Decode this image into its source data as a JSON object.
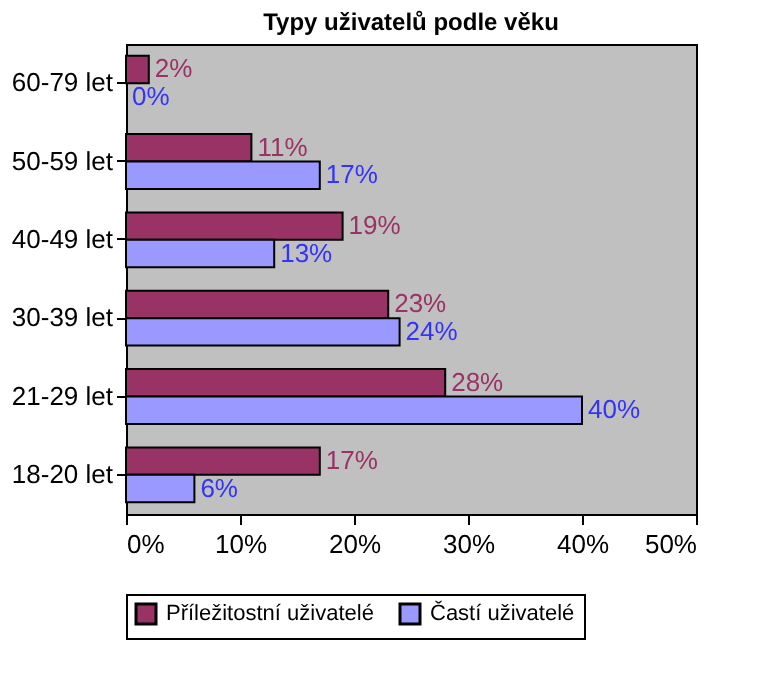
{
  "chart_data": {
    "type": "bar",
    "orientation": "horizontal",
    "title": "Typy uživatelů podle věku",
    "categories": [
      "60-79 let",
      "50-59 let",
      "40-49 let",
      "30-39 let",
      "21-29 let",
      "18-20 let"
    ],
    "series": [
      {
        "name": "Příležitostní uživatelé",
        "color": "#993366",
        "values": [
          2,
          11,
          19,
          23,
          28,
          17
        ],
        "value_labels": [
          "2%",
          "11%",
          "19%",
          "23%",
          "28%",
          "17%"
        ]
      },
      {
        "name": "Častí uživatelé",
        "color": "#9999ff",
        "values": [
          0,
          17,
          13,
          24,
          40,
          6
        ],
        "value_labels": [
          "0%",
          "17%",
          "13%",
          "24%",
          "40%",
          "6%"
        ]
      }
    ],
    "xlim": [
      0,
      50
    ],
    "xticks": [
      {
        "value": 0,
        "label": "0%"
      },
      {
        "value": 10,
        "label": "10%"
      },
      {
        "value": 20,
        "label": "20%"
      },
      {
        "value": 30,
        "label": "30%"
      },
      {
        "value": 40,
        "label": "40%"
      },
      {
        "value": 50,
        "label": "50%"
      }
    ],
    "grid": false,
    "legend": "bottom"
  }
}
